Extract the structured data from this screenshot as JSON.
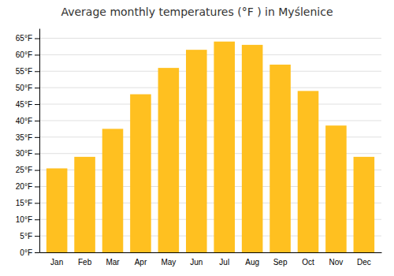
{
  "chart_data": {
    "type": "bar",
    "title": "Average monthly temperatures (°F ) in Myślenice",
    "categories": [
      "Jan",
      "Feb",
      "Mar",
      "Apr",
      "May",
      "Jun",
      "Jul",
      "Aug",
      "Sep",
      "Oct",
      "Nov",
      "Dec"
    ],
    "values": [
      25.5,
      29.0,
      37.5,
      48.0,
      56.0,
      61.5,
      64.0,
      63.0,
      57.0,
      49.0,
      38.5,
      29.0
    ],
    "color": "#FFC020",
    "ylim": [
      0,
      68
    ],
    "yticks": [
      {
        "value": 0,
        "label": "0°F"
      },
      {
        "value": 5,
        "label": "5°F"
      },
      {
        "value": 10,
        "label": "10°F"
      },
      {
        "value": 15,
        "label": "15°F"
      },
      {
        "value": 20,
        "label": "20°F"
      },
      {
        "value": 25,
        "label": "25°F"
      },
      {
        "value": 30,
        "label": "30°F"
      },
      {
        "value": 35,
        "label": "35°F"
      },
      {
        "value": 40,
        "label": "40°F"
      },
      {
        "value": 45,
        "label": "45°F"
      },
      {
        "value": 50,
        "label": "50°F"
      },
      {
        "value": 55,
        "label": "55°F"
      },
      {
        "value": 60,
        "label": "60°F"
      },
      {
        "value": 65,
        "label": "65°F"
      }
    ],
    "grid": true
  }
}
